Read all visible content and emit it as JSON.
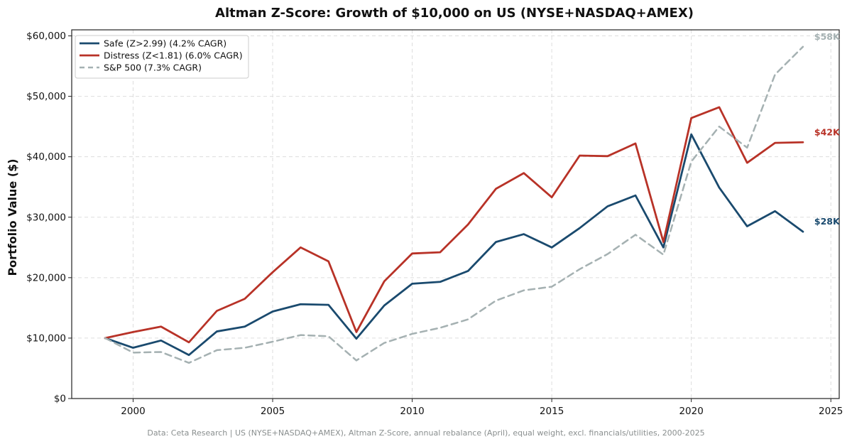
{
  "chart_data": {
    "type": "line",
    "title": "Altman Z-Score: Growth of $10,000 on US (NYSE+NASDAQ+AMEX)",
    "xlabel": "",
    "ylabel": "Portfolio Value ($)",
    "xlim": [
      1997.8,
      2025.3
    ],
    "ylim": [
      0,
      61000
    ],
    "x_ticks": [
      2000,
      2005,
      2010,
      2015,
      2020,
      2025
    ],
    "y_ticks": [
      0,
      10000,
      20000,
      30000,
      40000,
      50000,
      60000
    ],
    "y_tick_labels": [
      "$0",
      "$10,000",
      "$20,000",
      "$30,000",
      "$40,000",
      "$50,000",
      "$60,000"
    ],
    "grid": true,
    "legend_position": "top-left",
    "x": [
      1999,
      2000,
      2001,
      2002,
      2003,
      2004,
      2005,
      2006,
      2007,
      2008,
      2009,
      2010,
      2011,
      2012,
      2013,
      2014,
      2015,
      2016,
      2017,
      2018,
      2019,
      2020,
      2021,
      2022,
      2023,
      2024
    ],
    "series": [
      {
        "name": "Safe (Z>2.99) (4.2% CAGR)",
        "color": "#1a4a6e",
        "style": "solid",
        "values": [
          10000,
          8400,
          9600,
          7200,
          11100,
          11900,
          14400,
          15600,
          15500,
          9900,
          15400,
          19000,
          19300,
          21100,
          25900,
          27200,
          25000,
          28200,
          31800,
          33600,
          25000,
          43700,
          34900,
          28500,
          31000,
          27600
        ],
        "end_label": "$28K"
      },
      {
        "name": "Distress (Z<1.81) (6.0% CAGR)",
        "color": "#b83227",
        "style": "solid",
        "values": [
          10000,
          11000,
          11900,
          9300,
          14500,
          16500,
          20900,
          25000,
          22700,
          11000,
          19400,
          24000,
          24200,
          28800,
          34700,
          37300,
          33300,
          40200,
          40100,
          42200,
          25900,
          46400,
          48200,
          39000,
          42300,
          42400
        ],
        "end_label": "$42K"
      },
      {
        "name": "S&P 500 (7.3% CAGR)",
        "color": "#a5b1b2",
        "style": "dashed",
        "values": [
          10000,
          7600,
          7700,
          5900,
          8000,
          8400,
          9400,
          10500,
          10300,
          6300,
          9200,
          10700,
          11700,
          13100,
          16200,
          17900,
          18500,
          21400,
          23900,
          27100,
          23800,
          39200,
          45000,
          41500,
          53600,
          58200
        ],
        "end_label": "$58K"
      }
    ],
    "footer": "Data: Ceta Research | US (NYSE+NASDAQ+AMEX), Altman Z-Score, annual rebalance (April), equal weight, excl. financials/utilities, 2000-2025"
  }
}
